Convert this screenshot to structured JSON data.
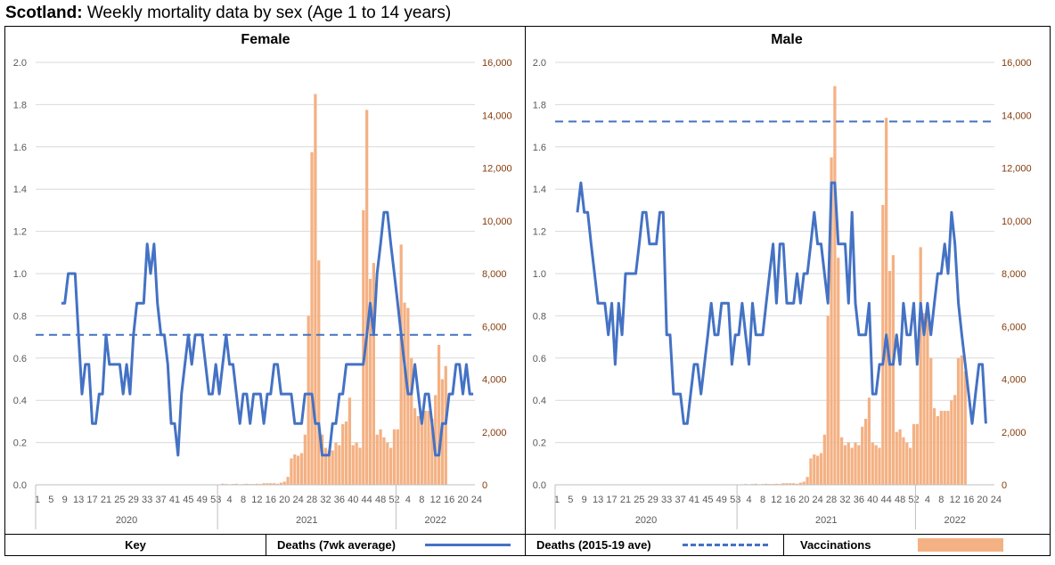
{
  "page": {
    "title_bold": "Scotland:",
    "title_rest": " Weekly mortality data by sex (Age 1 to 14 years)"
  },
  "colors": {
    "deaths_line": "#4472C4",
    "baseline": "#4472C4",
    "vaccinations": "#F4B183",
    "right_axis_text": "#843C0C",
    "grid": "#D9D9D9",
    "axis_text": "#595959"
  },
  "key": {
    "key_label": "Key",
    "deaths_label": "Deaths (7wk average)",
    "baseline_label": "Deaths (2015-19 ave)",
    "vacc_label": "Vaccinations"
  },
  "chart_data": [
    {
      "type": "line",
      "title": "Female",
      "xlabel": "",
      "ylabel": "",
      "grid": true,
      "x_week_tick_labels": [
        "1",
        "5",
        "9",
        "13",
        "17",
        "21",
        "25",
        "29",
        "33",
        "37",
        "41",
        "45",
        "49",
        "53",
        "4",
        "8",
        "12",
        "16",
        "20",
        "24",
        "28",
        "32",
        "36",
        "40",
        "44",
        "48",
        "52",
        "4",
        "8",
        "12",
        "16",
        "20",
        "24"
      ],
      "x_year_labels": [
        "2020",
        "2021",
        "2022"
      ],
      "ylim_left": [
        0,
        2.0
      ],
      "yticks_left": [
        "0.0",
        "0.2",
        "0.4",
        "0.6",
        "0.8",
        "1.0",
        "1.2",
        "1.4",
        "1.6",
        "1.8",
        "2.0"
      ],
      "ylim_right": [
        0,
        16000
      ],
      "yticks_right": [
        "0",
        "2,000",
        "4,000",
        "6,000",
        "8,000",
        "10,000",
        "12,000",
        "14,000",
        "16,000"
      ],
      "series": [
        {
          "kind": "line",
          "start_week_index": 7,
          "values": [
            0.86,
            0.86,
            1.0,
            1.0,
            1.0,
            0.71,
            0.43,
            0.57,
            0.57,
            0.29,
            0.29,
            0.43,
            0.43,
            0.71,
            0.57,
            0.57,
            0.57,
            0.57,
            0.43,
            0.57,
            0.43,
            0.71,
            0.86,
            0.86,
            0.86,
            1.14,
            1.0,
            1.14,
            0.86,
            0.71,
            0.71,
            0.57,
            0.29,
            0.29,
            0.14,
            0.43,
            0.57,
            0.71,
            0.57,
            0.71,
            0.71,
            0.71,
            0.57,
            0.43,
            0.43,
            0.57,
            0.43,
            0.57,
            0.71,
            0.57,
            0.57,
            0.43,
            0.29,
            0.43,
            0.43,
            0.29,
            0.43,
            0.43,
            0.43,
            0.29,
            0.43,
            0.43,
            0.57,
            0.57,
            0.43,
            0.43,
            0.43,
            0.43,
            0.29,
            0.29,
            0.29,
            0.43,
            0.43,
            0.43,
            0.29,
            0.29,
            0.14,
            0.14,
            0.14,
            0.29,
            0.29,
            0.43,
            0.43,
            0.57,
            0.57,
            0.57,
            0.57,
            0.57,
            0.57,
            0.71,
            0.86,
            0.71,
            1.0,
            1.14,
            1.29,
            1.29,
            1.14,
            1.0,
            0.86,
            0.71,
            0.57,
            0.43,
            0.43,
            0.57,
            0.43,
            0.29,
            0.43,
            0.43,
            0.29,
            0.14,
            0.14,
            0.29,
            0.29,
            0.43,
            0.43,
            0.57,
            0.57,
            0.43,
            0.57,
            0.43,
            0.43
          ]
        },
        {
          "kind": "baseline",
          "value": 0.71
        },
        {
          "kind": "bar",
          "start_week_index": 53,
          "values": [
            10,
            40,
            30,
            20,
            30,
            40,
            20,
            30,
            40,
            30,
            30,
            40,
            30,
            60,
            60,
            60,
            60,
            40,
            80,
            120,
            300,
            1000,
            1150,
            1100,
            1200,
            1900,
            6400,
            12600,
            14800,
            8500,
            1900,
            1400,
            1300,
            1300,
            1600,
            1500,
            2300,
            2400,
            3300,
            1500,
            1600,
            1400,
            10400,
            14200,
            7800,
            8400,
            1900,
            2100,
            1800,
            1600,
            1400,
            2100,
            2100,
            9100,
            6900,
            6700,
            4800,
            2900,
            2600,
            2800,
            2800,
            2800,
            2500,
            3400,
            5300,
            4000,
            4500
          ]
        }
      ]
    },
    {
      "type": "line",
      "title": "Male",
      "xlabel": "",
      "ylabel": "",
      "grid": true,
      "x_week_tick_labels": [
        "1",
        "5",
        "9",
        "13",
        "17",
        "21",
        "25",
        "29",
        "33",
        "37",
        "41",
        "45",
        "49",
        "53",
        "4",
        "8",
        "12",
        "16",
        "20",
        "24",
        "28",
        "32",
        "36",
        "40",
        "44",
        "48",
        "52",
        "4",
        "8",
        "12",
        "16",
        "20",
        "24"
      ],
      "x_year_labels": [
        "2020",
        "2021",
        "2022"
      ],
      "ylim_left": [
        0,
        2.0
      ],
      "yticks_left": [
        "0.0",
        "0.2",
        "0.4",
        "0.6",
        "0.8",
        "1.0",
        "1.2",
        "1.4",
        "1.6",
        "1.8",
        "2.0"
      ],
      "ylim_right": [
        0,
        16000
      ],
      "yticks_right": [
        "0",
        "2,000",
        "4,000",
        "6,000",
        "8,000",
        "10,000",
        "12,000",
        "14,000",
        "16,000"
      ],
      "series": [
        {
          "kind": "line",
          "start_week_index": 6,
          "values": [
            1.29,
            1.43,
            1.29,
            1.29,
            1.14,
            1.0,
            0.86,
            0.86,
            0.86,
            0.71,
            0.86,
            0.57,
            0.86,
            0.71,
            1.0,
            1.0,
            1.0,
            1.0,
            1.14,
            1.29,
            1.29,
            1.14,
            1.14,
            1.14,
            1.29,
            1.29,
            0.71,
            0.71,
            0.43,
            0.43,
            0.43,
            0.29,
            0.29,
            0.43,
            0.57,
            0.57,
            0.43,
            0.57,
            0.71,
            0.86,
            0.71,
            0.71,
            0.86,
            0.86,
            0.86,
            0.57,
            0.71,
            0.71,
            0.86,
            0.71,
            0.57,
            0.86,
            0.71,
            0.71,
            0.71,
            0.86,
            1.0,
            1.14,
            0.86,
            1.14,
            1.14,
            0.86,
            0.86,
            0.86,
            1.0,
            0.86,
            1.0,
            1.0,
            1.14,
            1.29,
            1.14,
            1.14,
            1.0,
            0.86,
            1.43,
            1.43,
            1.14,
            1.14,
            1.14,
            0.86,
            1.29,
            0.86,
            0.71,
            0.71,
            0.71,
            0.86,
            0.43,
            0.43,
            0.57,
            0.57,
            0.71,
            0.57,
            0.57,
            0.71,
            0.57,
            0.86,
            0.71,
            0.71,
            0.86,
            0.57,
            0.86,
            0.71,
            0.86,
            0.71,
            0.86,
            1.0,
            1.0,
            1.14,
            1.0,
            1.29,
            1.14,
            0.86,
            0.71,
            0.57,
            0.43,
            0.29,
            0.43,
            0.57,
            0.57,
            0.29
          ]
        },
        {
          "kind": "baseline",
          "value": 1.72
        },
        {
          "kind": "bar",
          "start_week_index": 53,
          "values": [
            10,
            20,
            30,
            20,
            30,
            40,
            20,
            30,
            40,
            30,
            30,
            40,
            30,
            60,
            60,
            60,
            60,
            40,
            80,
            120,
            300,
            1000,
            1150,
            1100,
            1200,
            1900,
            6400,
            12400,
            15100,
            8600,
            1800,
            1500,
            1600,
            1400,
            1600,
            1500,
            2200,
            2500,
            3300,
            1600,
            1500,
            1400,
            10600,
            13900,
            8100,
            8700,
            2000,
            2100,
            1800,
            1600,
            1400,
            2300,
            2300,
            9000,
            6500,
            6700,
            4800,
            2900,
            2600,
            2800,
            2800,
            2800,
            3200,
            3400,
            4800,
            4900,
            4300
          ]
        }
      ]
    }
  ]
}
